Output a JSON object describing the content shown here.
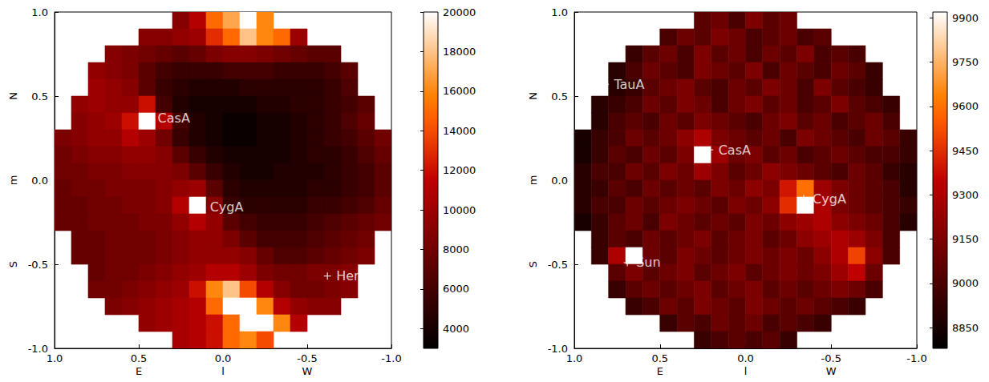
{
  "chart_data": [
    {
      "type": "heatmap",
      "xlabel": [
        "E",
        "l",
        "W"
      ],
      "ylabel": [
        "S",
        "m",
        "N"
      ],
      "xlim": [
        1.0,
        -1.0
      ],
      "ylim": [
        -1.0,
        1.0
      ],
      "xticks": [
        {
          "value": 1.0,
          "label": "1.0"
        },
        {
          "value": 0.5,
          "label": "0.5"
        },
        {
          "value": 0.0,
          "label": "0.0"
        },
        {
          "value": -0.5,
          "label": "-0.5"
        },
        {
          "value": -1.0,
          "label": "-1.0"
        }
      ],
      "yticks": [
        {
          "value": -1.0,
          "label": "-1.0"
        },
        {
          "value": -0.5,
          "label": "-0.5"
        },
        {
          "value": 0.0,
          "label": "0.0"
        },
        {
          "value": 0.5,
          "label": "0.5"
        },
        {
          "value": 1.0,
          "label": "1.0"
        }
      ],
      "x": [
        0.95,
        0.85,
        0.75,
        0.65,
        0.55,
        0.45,
        0.35,
        0.25,
        0.15,
        0.05,
        -0.05,
        -0.15,
        -0.25,
        -0.35,
        -0.45,
        -0.55,
        -0.65,
        -0.75,
        -0.85,
        -0.95
      ],
      "y": [
        0.95,
        0.85,
        0.75,
        0.65,
        0.55,
        0.45,
        0.35,
        0.25,
        0.15,
        0.05,
        -0.05,
        -0.15,
        -0.25,
        -0.35,
        -0.45,
        -0.55,
        -0.65,
        -0.75,
        -0.85,
        -0.95
      ],
      "values": [
        [
          null,
          null,
          null,
          null,
          null,
          null,
          null,
          9000,
          11000,
          15000,
          17000,
          20000,
          16000,
          null,
          null,
          null,
          null,
          null,
          null,
          null
        ],
        [
          null,
          null,
          null,
          null,
          null,
          9000,
          9000,
          9500,
          10000,
          13000,
          15000,
          18000,
          16000,
          15000,
          10000,
          null,
          null,
          null,
          null,
          null
        ],
        [
          null,
          null,
          null,
          9000,
          8500,
          8000,
          7500,
          7000,
          7500,
          8500,
          9000,
          9000,
          8500,
          8000,
          7500,
          7000,
          7000,
          null,
          null,
          null
        ],
        [
          null,
          null,
          9500,
          9000,
          8500,
          7000,
          6000,
          5500,
          5500,
          5500,
          6000,
          6000,
          6000,
          5500,
          5500,
          5500,
          6000,
          7000,
          null,
          null
        ],
        [
          null,
          null,
          10000,
          9500,
          9000,
          7000,
          5500,
          5000,
          4500,
          4500,
          4500,
          5000,
          5000,
          5000,
          5000,
          5000,
          5500,
          6500,
          null,
          null
        ],
        [
          null,
          9500,
          10000,
          9500,
          9500,
          12000,
          6000,
          4500,
          4000,
          4000,
          4000,
          4000,
          4500,
          4500,
          5000,
          5000,
          5500,
          6000,
          7000,
          null
        ],
        [
          null,
          9000,
          9500,
          10000,
          12000,
          20000,
          11000,
          6000,
          4500,
          4000,
          3500,
          3500,
          4000,
          4000,
          4500,
          5000,
          5500,
          6500,
          7500,
          null
        ],
        [
          8500,
          9000,
          9500,
          9500,
          11000,
          10000,
          8000,
          5500,
          4500,
          4000,
          3500,
          3500,
          4000,
          4000,
          4500,
          5000,
          5500,
          6000,
          7000,
          8000
        ],
        [
          8000,
          8500,
          9000,
          9000,
          9500,
          9500,
          9000,
          7000,
          5500,
          4500,
          4000,
          4000,
          4000,
          4000,
          4500,
          5000,
          5000,
          5500,
          6500,
          7500
        ],
        [
          8000,
          8000,
          8500,
          8500,
          9000,
          9000,
          9000,
          8500,
          7000,
          5500,
          4500,
          4000,
          4000,
          4500,
          4500,
          4500,
          5000,
          5500,
          6000,
          7000
        ],
        [
          7500,
          8000,
          8000,
          8500,
          8500,
          8500,
          9000,
          9500,
          10000,
          7000,
          5000,
          4500,
          4500,
          4500,
          4500,
          5000,
          5000,
          5500,
          6000,
          7000
        ],
        [
          7500,
          7500,
          8000,
          8000,
          8500,
          8500,
          9000,
          11000,
          20000,
          9000,
          5500,
          5000,
          5000,
          5000,
          5000,
          5500,
          5500,
          6000,
          6500,
          7500
        ],
        [
          7500,
          7500,
          8000,
          8000,
          8000,
          8500,
          8500,
          9500,
          11000,
          9500,
          7000,
          6000,
          5500,
          5500,
          5500,
          6000,
          6500,
          7000,
          7500,
          8000
        ],
        [
          null,
          7500,
          7500,
          8000,
          8000,
          8000,
          8500,
          9000,
          9500,
          9500,
          8500,
          7000,
          6000,
          6000,
          6000,
          6500,
          7000,
          7500,
          8000,
          null
        ],
        [
          null,
          7500,
          7500,
          8000,
          8000,
          8000,
          8500,
          9000,
          9500,
          9500,
          9500,
          9000,
          7500,
          6500,
          6500,
          7000,
          7500,
          8000,
          8500,
          null
        ],
        [
          null,
          null,
          7500,
          8000,
          8000,
          8500,
          9000,
          9500,
          10000,
          11000,
          11000,
          10000,
          8500,
          8000,
          8000,
          8500,
          8500,
          9000,
          null,
          null
        ],
        [
          null,
          null,
          8000,
          8000,
          8500,
          9000,
          9500,
          10000,
          12000,
          16000,
          18000,
          14000,
          11000,
          9000,
          8000,
          8000,
          8500,
          9000,
          null,
          null
        ],
        [
          null,
          null,
          null,
          8500,
          9000,
          9500,
          10000,
          10500,
          11000,
          15000,
          20000,
          20000,
          16000,
          11000,
          9500,
          9000,
          9000,
          null,
          null,
          null
        ],
        [
          null,
          null,
          null,
          null,
          null,
          9500,
          10000,
          10500,
          11000,
          12000,
          15000,
          20000,
          20000,
          16000,
          11000,
          null,
          null,
          null,
          null,
          null
        ],
        [
          null,
          null,
          null,
          null,
          null,
          null,
          null,
          10500,
          11000,
          12000,
          15000,
          16000,
          14000,
          null,
          null,
          null,
          null,
          null,
          null,
          null
        ]
      ],
      "colorbar_lim": [
        3000,
        20000
      ],
      "colorbar_ticks": [
        4000,
        6000,
        8000,
        10000,
        12000,
        14000,
        16000,
        18000,
        20000
      ],
      "annotations": [
        {
          "text": "CasA",
          "l": 0.44,
          "m": 0.37
        },
        {
          "text": "CygA",
          "l": 0.13,
          "m": -0.16
        },
        {
          "text": "HerA",
          "l": -0.62,
          "m": -0.57
        }
      ]
    },
    {
      "type": "heatmap",
      "xlabel": [
        "E",
        "l",
        "W"
      ],
      "ylabel": [
        "S",
        "m",
        "N"
      ],
      "xlim": [
        1.0,
        -1.0
      ],
      "ylim": [
        -1.0,
        1.0
      ],
      "xticks": [
        {
          "value": 1.0,
          "label": "1.0"
        },
        {
          "value": 0.5,
          "label": "0.5"
        },
        {
          "value": 0.0,
          "label": "0.0"
        },
        {
          "value": -0.5,
          "label": "-0.5"
        },
        {
          "value": -1.0,
          "label": "-1.0"
        }
      ],
      "yticks": [
        {
          "value": -1.0,
          "label": "-1.0"
        },
        {
          "value": -0.5,
          "label": "-0.5"
        },
        {
          "value": 0.0,
          "label": "0.0"
        },
        {
          "value": 0.5,
          "label": "0.5"
        },
        {
          "value": 1.0,
          "label": "1.0"
        }
      ],
      "x": [
        0.95,
        0.85,
        0.75,
        0.65,
        0.55,
        0.45,
        0.35,
        0.25,
        0.15,
        0.05,
        -0.05,
        -0.15,
        -0.25,
        -0.35,
        -0.45,
        -0.55,
        -0.65,
        -0.75,
        -0.85,
        -0.95
      ],
      "y": [
        0.95,
        0.85,
        0.75,
        0.65,
        0.55,
        0.45,
        0.35,
        0.25,
        0.15,
        0.05,
        -0.05,
        -0.15,
        -0.25,
        -0.35,
        -0.45,
        -0.55,
        -0.65,
        -0.75,
        -0.85,
        -0.95
      ],
      "values": [
        [
          null,
          null,
          null,
          null,
          null,
          null,
          null,
          9050,
          9100,
          9000,
          9150,
          9050,
          9100,
          null,
          null,
          null,
          null,
          null,
          null,
          null
        ],
        [
          null,
          null,
          null,
          null,
          null,
          9000,
          9100,
          9050,
          9150,
          9100,
          9000,
          9050,
          9100,
          9000,
          9050,
          null,
          null,
          null,
          null,
          null
        ],
        [
          null,
          null,
          null,
          8950,
          9050,
          9100,
          9000,
          9150,
          9050,
          9100,
          9000,
          9100,
          9050,
          9150,
          9000,
          9050,
          9000,
          null,
          null,
          null
        ],
        [
          null,
          null,
          8900,
          9000,
          9100,
          9050,
          9000,
          9150,
          9100,
          9050,
          9150,
          9000,
          9100,
          9050,
          9000,
          9100,
          9050,
          8950,
          null,
          null
        ],
        [
          null,
          null,
          8900,
          8950,
          9050,
          9100,
          9150,
          9050,
          9000,
          9100,
          9050,
          9150,
          9100,
          9000,
          9150,
          9050,
          9000,
          8950,
          null,
          null
        ],
        [
          null,
          8900,
          8950,
          9000,
          9100,
          9050,
          9150,
          9100,
          9000,
          9100,
          9150,
          9050,
          9100,
          9000,
          9050,
          9150,
          9050,
          9000,
          8950,
          null
        ],
        [
          null,
          8900,
          9000,
          9050,
          9000,
          9100,
          9050,
          9150,
          9100,
          9050,
          9000,
          9100,
          9150,
          9050,
          9100,
          9000,
          9050,
          9100,
          9000,
          null
        ],
        [
          8850,
          8950,
          9000,
          9100,
          9050,
          9100,
          9200,
          9300,
          9150,
          9100,
          9050,
          9100,
          9000,
          9150,
          9100,
          9050,
          9000,
          9100,
          9050,
          8950
        ],
        [
          8850,
          8950,
          9050,
          9000,
          9100,
          9050,
          9150,
          9920,
          9250,
          9100,
          9150,
          9050,
          9100,
          9000,
          9050,
          9100,
          9050,
          9000,
          9000,
          8950
        ],
        [
          8900,
          9000,
          9000,
          9100,
          9050,
          9150,
          9100,
          9250,
          9150,
          9050,
          9100,
          9200,
          9150,
          9100,
          9050,
          9000,
          9100,
          9050,
          8950,
          8900
        ],
        [
          8900,
          8950,
          9050,
          9000,
          9100,
          9050,
          9100,
          9050,
          9150,
          9100,
          9200,
          9150,
          9400,
          9600,
          9250,
          9150,
          9100,
          9050,
          9000,
          8900
        ],
        [
          8900,
          9000,
          9000,
          9100,
          9050,
          9100,
          9150,
          9100,
          9050,
          9150,
          9100,
          9200,
          9450,
          9920,
          9300,
          9150,
          9100,
          9050,
          9000,
          8950
        ],
        [
          8850,
          8950,
          9050,
          9100,
          9000,
          9150,
          9100,
          9050,
          9100,
          9050,
          9150,
          9100,
          9200,
          9250,
          9300,
          9200,
          9150,
          9100,
          9000,
          8900
        ],
        [
          null,
          8950,
          9050,
          9000,
          9100,
          9050,
          9100,
          9150,
          9050,
          9100,
          9150,
          9050,
          9100,
          9200,
          9250,
          9300,
          9250,
          9150,
          9000,
          null
        ],
        [
          null,
          8950,
          9300,
          9920,
          9100,
          9050,
          9150,
          9100,
          9050,
          9100,
          9150,
          9100,
          9150,
          9100,
          9200,
          9300,
          9500,
          9200,
          9000,
          null
        ],
        [
          null,
          null,
          9050,
          9150,
          9050,
          9100,
          9150,
          9050,
          9100,
          9150,
          9050,
          9100,
          9150,
          9100,
          9150,
          9250,
          9350,
          9100,
          null,
          null
        ],
        [
          null,
          null,
          8950,
          9050,
          9100,
          9050,
          9100,
          9150,
          9050,
          9100,
          9150,
          9050,
          9100,
          9050,
          9100,
          9150,
          9100,
          9000,
          null,
          null
        ],
        [
          null,
          null,
          null,
          8950,
          9000,
          9100,
          9050,
          9150,
          9100,
          9050,
          9150,
          9100,
          9050,
          9100,
          9050,
          9000,
          8950,
          null,
          null,
          null
        ],
        [
          null,
          null,
          null,
          null,
          null,
          8950,
          9050,
          9000,
          9100,
          9050,
          9100,
          9000,
          9050,
          9000,
          8950,
          null,
          null,
          null,
          null,
          null
        ],
        [
          null,
          null,
          null,
          null,
          null,
          null,
          null,
          8950,
          9000,
          9050,
          9000,
          9050,
          8950,
          null,
          null,
          null,
          null,
          null,
          null,
          null
        ]
      ],
      "colorbar_lim": [
        8780,
        9920
      ],
      "colorbar_ticks": [
        8850,
        9000,
        9150,
        9300,
        9450,
        9600,
        9750,
        9900
      ],
      "annotations": [
        {
          "text": "TauA",
          "l": 0.82,
          "m": 0.57
        },
        {
          "text": "CasA",
          "l": 0.21,
          "m": 0.18
        },
        {
          "text": "CygA",
          "l": -0.34,
          "m": -0.11
        },
        {
          "text": "Sun",
          "l": 0.69,
          "m": -0.49
        }
      ]
    }
  ]
}
